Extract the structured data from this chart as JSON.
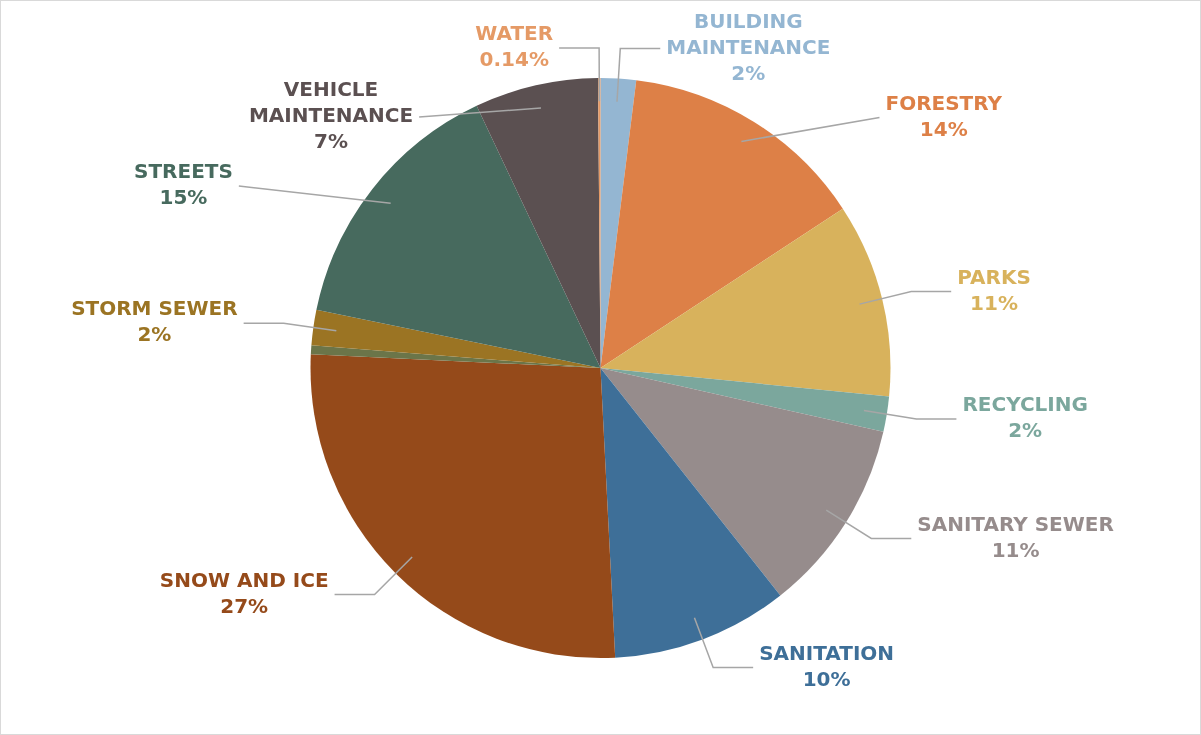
{
  "chart_data": {
    "type": "pie",
    "categories": [
      "BUILDING MAINTENANCE",
      "FORESTRY",
      "PARKS",
      "RECYCLING",
      "SANITARY SEWER",
      "SANITATION",
      "SNOW AND ICE",
      null,
      "STORM SEWER",
      "STREETS",
      "VEHICLE MAINTENANCE",
      "WATER"
    ],
    "values": [
      2,
      14,
      11,
      2,
      11,
      10,
      27,
      0.5,
      2,
      15,
      7,
      0.14
    ],
    "value_labels": [
      "2%",
      "14%",
      "11%",
      "2%",
      "11%",
      "10%",
      "27%",
      null,
      "2%",
      "15%",
      "7%",
      "0.14%"
    ],
    "colors": [
      "#94b6d2",
      "#dd8047",
      "#d8b25c",
      "#7ba79d",
      "#968c8c",
      "#3e6f98",
      "#954a1a",
      "#6b7549",
      "#9b7423",
      "#476a5e",
      "#5b5051",
      "#e59a66"
    ],
    "legend": false
  }
}
